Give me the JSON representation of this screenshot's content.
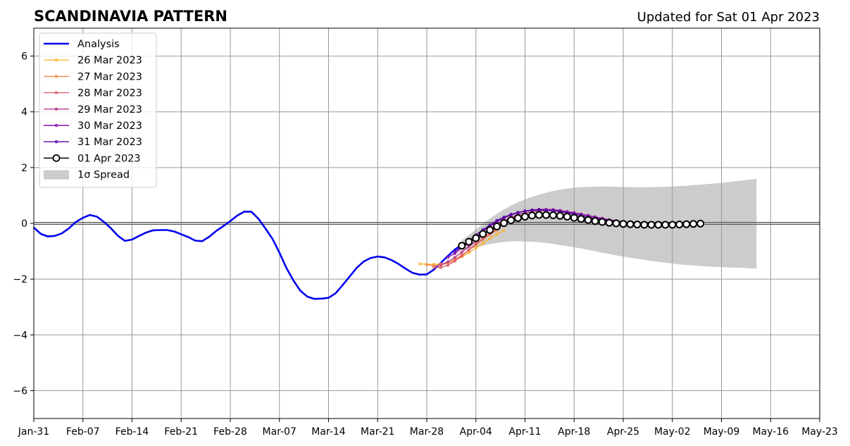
{
  "page": {
    "title": "SCANDINAVIA PATTERN",
    "updated": "Updated for Sat 01 Apr 2023"
  },
  "chart_data": {
    "type": "line",
    "title": "SCANDINAVIA PATTERN",
    "subtitle": "Updated for Sat 01 Apr 2023",
    "xlabel": "",
    "ylabel": "",
    "xlim": [
      "2023-01-31",
      "2023-05-23"
    ],
    "ylim": [
      -7,
      7
    ],
    "grid": true,
    "legend_position": "top-left",
    "x_ticks": [
      "2023-01-31",
      "2023-02-07",
      "2023-02-14",
      "2023-02-21",
      "2023-02-28",
      "2023-03-07",
      "2023-03-14",
      "2023-03-21",
      "2023-03-28",
      "2023-04-04",
      "2023-04-11",
      "2023-04-18",
      "2023-04-25",
      "2023-05-02",
      "2023-05-09",
      "2023-05-16",
      "2023-05-23"
    ],
    "x_tick_labels": [
      "Jan-31",
      "Feb-07",
      "Feb-14",
      "Feb-21",
      "Feb-28",
      "Mar-07",
      "Mar-14",
      "Mar-21",
      "Mar-28",
      "Apr-04",
      "Apr-11",
      "Apr-18",
      "Apr-25",
      "May-02",
      "May-09",
      "May-16",
      "May-23"
    ],
    "y_ticks": [
      -6,
      -4,
      -2,
      0,
      2,
      4,
      6
    ],
    "y_tick_labels": [
      "−6",
      "−4",
      "−2",
      "0",
      "2",
      "4",
      "6"
    ],
    "analysis": {
      "name": "Analysis",
      "color": "#0000ee",
      "start": "2023-01-31",
      "values": [
        -0.15,
        -0.38,
        -0.47,
        -0.45,
        -0.36,
        -0.18,
        0.05,
        0.2,
        0.3,
        0.24,
        0.05,
        -0.18,
        -0.45,
        -0.63,
        -0.58,
        -0.45,
        -0.33,
        -0.25,
        -0.24,
        -0.24,
        -0.29,
        -0.39,
        -0.49,
        -0.62,
        -0.64,
        -0.48,
        -0.27,
        -0.1,
        0.08,
        0.28,
        0.42,
        0.42,
        0.17,
        -0.18,
        -0.55,
        -1.05,
        -1.6,
        -2.05,
        -2.42,
        -2.63,
        -2.71,
        -2.7,
        -2.67,
        -2.51,
        -2.22,
        -1.91,
        -1.6,
        -1.37,
        -1.24,
        -1.19,
        -1.22,
        -1.32,
        -1.46,
        -1.63,
        -1.78,
        -1.84,
        -1.83,
        -1.66,
        -1.42,
        -1.17,
        -0.94,
        -0.77
      ]
    },
    "forecasts": [
      {
        "name": "26 Mar 2023",
        "color": "#fdb42f",
        "start": "2023-03-27",
        "values": [
          -1.45,
          -1.47,
          -1.47,
          -1.46,
          -1.42,
          -1.33,
          -1.2,
          -1.05,
          -0.88,
          -0.72,
          -0.55,
          -0.39,
          -0.25
        ]
      },
      {
        "name": "27 Mar 2023",
        "color": "#f48849",
        "start": "2023-03-28",
        "values": [
          -1.48,
          -1.52,
          -1.5,
          -1.42,
          -1.3,
          -1.14,
          -0.96,
          -0.77,
          -0.58,
          -0.4,
          -0.24
        ]
      },
      {
        "name": "28 Mar 2023",
        "color": "#db5c68",
        "start": "2023-03-29",
        "values": [
          -1.58,
          -1.58,
          -1.5,
          -1.35,
          -1.16,
          -0.96,
          -0.74,
          -0.54,
          -0.36,
          -0.2,
          -0.05
        ]
      },
      {
        "name": "29 Mar 2023",
        "color": "#b83289",
        "start": "2023-03-30",
        "values": [
          -1.48,
          -1.38,
          -1.22,
          -1.03,
          -0.83,
          -0.63,
          -0.43,
          -0.23,
          -0.06,
          0.09,
          0.21,
          0.31,
          0.38,
          0.42,
          0.45,
          0.46,
          0.46,
          0.44,
          0.41,
          0.37,
          0.33,
          0.28,
          0.23,
          0.18,
          0.13,
          0.09,
          0.05,
          0.02,
          0.0,
          -0.02,
          -0.03
        ]
      },
      {
        "name": "30 Mar 2023",
        "color": "#8b0aa5",
        "start": "2023-03-31",
        "values": [
          -1.22,
          -1.08,
          -0.88,
          -0.68,
          -0.48,
          -0.28,
          -0.1,
          0.06,
          0.19,
          0.3,
          0.38,
          0.44,
          0.48,
          0.5,
          0.5,
          0.49,
          0.46,
          0.42,
          0.38,
          0.33,
          0.28,
          0.23,
          0.18,
          0.13,
          0.09,
          0.05,
          0.02,
          0.0,
          -0.02,
          -0.03
        ]
      },
      {
        "name": "31 Mar 2023",
        "color": "#5302a3",
        "start": "2023-04-01",
        "values": [
          -1.02,
          -0.82,
          -0.62,
          -0.42,
          -0.23,
          -0.06,
          0.1,
          0.22,
          0.32,
          0.39,
          0.44,
          0.47,
          0.48,
          0.47,
          0.45,
          0.42,
          0.38,
          0.33,
          0.28,
          0.23,
          0.18,
          0.14,
          0.1,
          0.06,
          0.03,
          0.01,
          -0.01,
          -0.02,
          -0.03
        ]
      },
      {
        "name": "01 Apr 2023",
        "color": "#000000",
        "start": "2023-04-02",
        "values": [
          -0.8,
          -0.66,
          -0.53,
          -0.38,
          -0.24,
          -0.11,
          0.01,
          0.11,
          0.19,
          0.24,
          0.28,
          0.3,
          0.3,
          0.29,
          0.27,
          0.24,
          0.2,
          0.16,
          0.12,
          0.08,
          0.05,
          0.02,
          0.0,
          -0.02,
          -0.03,
          -0.04,
          -0.05,
          -0.05,
          -0.05,
          -0.05,
          -0.05,
          -0.04,
          -0.03,
          -0.02,
          -0.01
        ]
      }
    ],
    "spread": {
      "name": "1σ Spread",
      "color": "#cccccc",
      "start": "2023-04-02",
      "upper": [
        -0.6,
        -0.42,
        -0.22,
        -0.02,
        0.17,
        0.34,
        0.5,
        0.64,
        0.76,
        0.86,
        0.95,
        1.03,
        1.1,
        1.16,
        1.21,
        1.25,
        1.28,
        1.3,
        1.31,
        1.32,
        1.32,
        1.32,
        1.31,
        1.31,
        1.3,
        1.3,
        1.3,
        1.3,
        1.31,
        1.31,
        1.32,
        1.34,
        1.35,
        1.37,
        1.39,
        1.41,
        1.43,
        1.45,
        1.48,
        1.51,
        1.54,
        1.57,
        1.6
      ],
      "lower": [
        -1.0,
        -0.93,
        -0.86,
        -0.8,
        -0.74,
        -0.7,
        -0.67,
        -0.65,
        -0.64,
        -0.65,
        -0.66,
        -0.68,
        -0.7,
        -0.74,
        -0.78,
        -0.82,
        -0.86,
        -0.9,
        -0.95,
        -1.0,
        -1.05,
        -1.1,
        -1.15,
        -1.19,
        -1.23,
        -1.27,
        -1.31,
        -1.35,
        -1.38,
        -1.41,
        -1.44,
        -1.47,
        -1.49,
        -1.51,
        -1.53,
        -1.55,
        -1.56,
        -1.57,
        -1.58,
        -1.59,
        -1.6,
        -1.61,
        -1.62
      ]
    }
  }
}
